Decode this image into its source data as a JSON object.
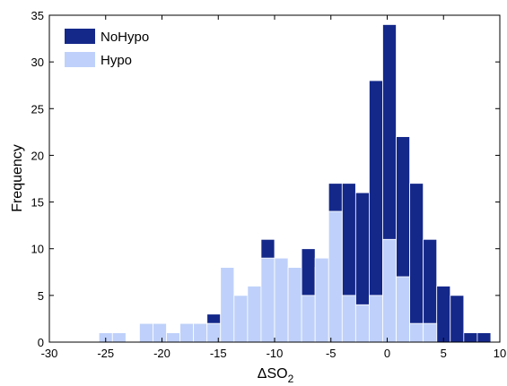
{
  "chart_data": {
    "type": "bar",
    "subtype": "overlaid-histogram",
    "xlabel": "ΔSO",
    "xlabel_subscript": "2",
    "ylabel": "Frequency",
    "xlim": [
      -30,
      10
    ],
    "ylim": [
      0,
      35
    ],
    "xticks": [
      -30,
      -25,
      -20,
      -15,
      -10,
      -5,
      0,
      5,
      10
    ],
    "yticks": [
      0,
      5,
      10,
      15,
      20,
      25,
      30,
      35
    ],
    "grid": false,
    "legend_position": "top-left",
    "bin_width": 1.2,
    "bin_starts": [
      -25.6,
      -24.4,
      -23.2,
      -22.0,
      -20.8,
      -19.6,
      -18.4,
      -17.2,
      -16.0,
      -14.8,
      -13.6,
      -12.4,
      -11.2,
      -10.0,
      -8.8,
      -7.6,
      -6.4,
      -5.2,
      -4.0,
      -2.8,
      -1.6,
      -0.4,
      0.8,
      2.0,
      3.2,
      4.4,
      5.6,
      6.8,
      8.0
    ],
    "series": [
      {
        "name": "NoHypo",
        "color": "#14288a",
        "values": [
          0,
          0,
          0,
          0,
          0,
          0,
          1,
          1,
          3,
          4,
          0,
          6,
          11,
          0,
          0,
          10,
          8,
          17,
          17,
          16,
          28,
          34,
          22,
          17,
          11,
          6,
          5,
          1,
          1
        ]
      },
      {
        "name": "Hypo",
        "color": "#bfd1fa",
        "values": [
          1,
          1,
          0,
          2,
          2,
          1,
          2,
          2,
          2,
          8,
          5,
          6,
          9,
          9,
          8,
          5,
          9,
          14,
          5,
          4,
          5,
          11,
          7,
          2,
          2,
          0,
          0,
          0,
          0
        ]
      }
    ]
  }
}
